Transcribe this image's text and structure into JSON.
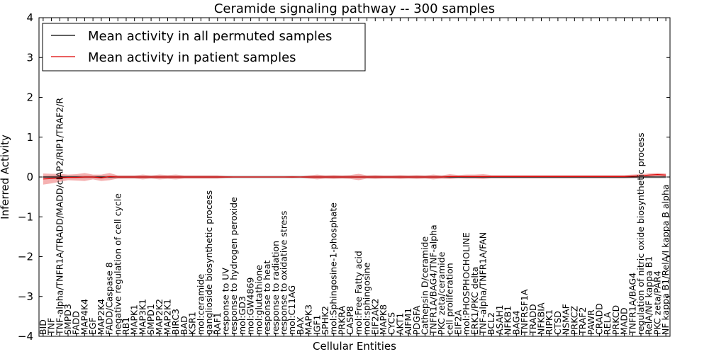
{
  "chart_data": {
    "type": "line",
    "title": "Ceramide signaling pathway -- 300 samples",
    "xlabel": "Cellular Entities",
    "ylabel": "Inferred Activity",
    "ylim": [
      -4,
      4
    ],
    "yticks": [
      "−4",
      "−3",
      "−2",
      "−1",
      "0",
      "1",
      "2",
      "3",
      "4"
    ],
    "legend_position": "top-left",
    "categories": [
      "BID",
      "TNF",
      "TNF-alpha/TNFR1A/TRADD/MADD/cIAP2/RIP1/TRAF2/R",
      "SMPD3",
      "FADD",
      "MAP4K4",
      "EGF",
      "MAP2K4",
      "FADD/Caspase 8",
      "negative regulation of cell cycle",
      "RB1",
      "MAPK1",
      "MAP3K1",
      "SMPD1",
      "MAP2K2",
      "MAP2K1",
      "BIRC3",
      "BAD",
      "KSR1",
      "mol:ceramide",
      "ganglioside biosynthetic process",
      "RAF1",
      "response to UV",
      "response to hydrogen peroxide",
      "mol:GD3",
      "mol:GW4869",
      "mol:glutathione",
      "response to heat",
      "response to radiation",
      "response to oxidative stress",
      "mol:C11AG",
      "BAX",
      "MAPK3",
      "IGF1",
      "SPHK2",
      "mol:Sphingosine-1-phosphate",
      "PRKRA",
      "CASP8",
      "mol:Free Fatty acid",
      "mol:sphingosine",
      "EIF2AK2",
      "MAPK8",
      "CYCS",
      "AKT1",
      "AIFM1",
      "PDGFA",
      "Cathepsin D/ceramide",
      "TNFR1A/BAG4/TNF-alpha",
      "PKC zeta/ceramide",
      "cell proliferation",
      "EIF2A",
      "mol:PHOSPHOCHOLINE",
      "ERK1/PKC delta",
      "TNF-alpha/TNFR1A/FAN",
      "BCL2",
      "ASAH1",
      "NFKB1",
      "BAG4",
      "TNFRSF1A",
      "TRADD",
      "NFKBIA",
      "RIPK1",
      "CTSD",
      "NSMAF",
      "PRKCZ",
      "TRAF2",
      "PAWR",
      "CRADD",
      "RELA",
      "PRKCD",
      "MADD",
      "TNFR1A/BAG4",
      "regulation of nitric oxide biosynthetic process",
      "RelA/NF kappa B1",
      "PKC zeta/PAR4",
      "NF kappa B1/RelA/I kappa B alpha"
    ],
    "series": [
      {
        "name": "Mean activity in all permuted samples",
        "color": "#000000",
        "values": [
          0,
          0,
          0,
          0,
          0,
          0,
          0,
          0,
          0,
          0,
          0,
          0,
          0,
          0,
          0,
          0,
          0,
          0,
          0,
          0,
          0,
          0,
          0,
          0,
          0,
          0,
          0,
          0,
          0,
          0,
          0,
          0,
          0,
          0,
          0,
          0,
          0,
          0,
          0,
          0,
          0,
          0,
          0,
          0,
          0,
          0,
          0,
          0,
          0,
          0,
          0,
          0,
          0,
          0,
          0,
          0,
          0,
          0,
          0,
          0,
          0,
          0,
          0,
          0,
          0,
          0,
          0,
          0,
          0,
          0,
          0,
          0,
          0,
          0,
          0,
          0
        ],
        "band": [
          0.02,
          0.04,
          0.04,
          0.04,
          0.04,
          0.04,
          0.04,
          0.04,
          0.04,
          0.04,
          0.04,
          0.04,
          0.04,
          0.04,
          0.04,
          0.04,
          0.04,
          0.04,
          0.04,
          0.04,
          0.04,
          0.04,
          0.04,
          0.04,
          0.04,
          0.04,
          0.04,
          0.04,
          0.04,
          0.04,
          0.04,
          0.04,
          0.04,
          0.04,
          0.04,
          0.04,
          0.04,
          0.04,
          0.04,
          0.04,
          0.04,
          0.04,
          0.04,
          0.04,
          0.04,
          0.04,
          0.04,
          0.04,
          0.04,
          0.04,
          0.04,
          0.04,
          0.04,
          0.04,
          0.04,
          0.04,
          0.04,
          0.04,
          0.04,
          0.04,
          0.04,
          0.04,
          0.04,
          0.04,
          0.04,
          0.04,
          0.04,
          0.04,
          0.04,
          0.04,
          0.04,
          0.04,
          0.04,
          0.04,
          0.04,
          0.04
        ]
      },
      {
        "name": "Mean activity in patient samples",
        "color": "#dd0000",
        "values": [
          -0.05,
          -0.04,
          -0.02,
          -0.01,
          -0.01,
          0,
          0,
          -0.02,
          0.01,
          0,
          0,
          0,
          0,
          0,
          0,
          0,
          0,
          0,
          0,
          0,
          0,
          0,
          0,
          0,
          0,
          0,
          0,
          0,
          0,
          0,
          0,
          0,
          0,
          0,
          0,
          0,
          0,
          0,
          0,
          0,
          0,
          0,
          0,
          0,
          0,
          0,
          0,
          0,
          0,
          0.01,
          0.01,
          0.01,
          0.01,
          0.01,
          0.01,
          0.01,
          0.01,
          0.01,
          0.01,
          0.01,
          0.01,
          0.01,
          0.01,
          0.01,
          0.01,
          0.01,
          0.01,
          0.01,
          0.01,
          0.01,
          0.01,
          0.02,
          0.03,
          0.05,
          0.06,
          0.05
        ],
        "band": [
          0.14,
          0.12,
          0.1,
          0.07,
          0.08,
          0.1,
          0.06,
          0.08,
          0.09,
          0.04,
          0.04,
          0.04,
          0.06,
          0.04,
          0.06,
          0.05,
          0.06,
          0.04,
          0.04,
          0.04,
          0.04,
          0.04,
          0.02,
          0.01,
          0.01,
          0.01,
          0.01,
          0.01,
          0.01,
          0.01,
          0.02,
          0.01,
          0.04,
          0.06,
          0.04,
          0.05,
          0.04,
          0.05,
          0.08,
          0.04,
          0.05,
          0.04,
          0.04,
          0.05,
          0.04,
          0.05,
          0.04,
          0.06,
          0.04,
          0.06,
          0.04,
          0.05,
          0.05,
          0.06,
          0.04,
          0.04,
          0.04,
          0.04,
          0.04,
          0.04,
          0.04,
          0.04,
          0.04,
          0.04,
          0.04,
          0.04,
          0.04,
          0.04,
          0.04,
          0.04,
          0.04,
          0.04,
          0.04,
          0.04,
          0.04,
          0.04
        ]
      }
    ]
  }
}
